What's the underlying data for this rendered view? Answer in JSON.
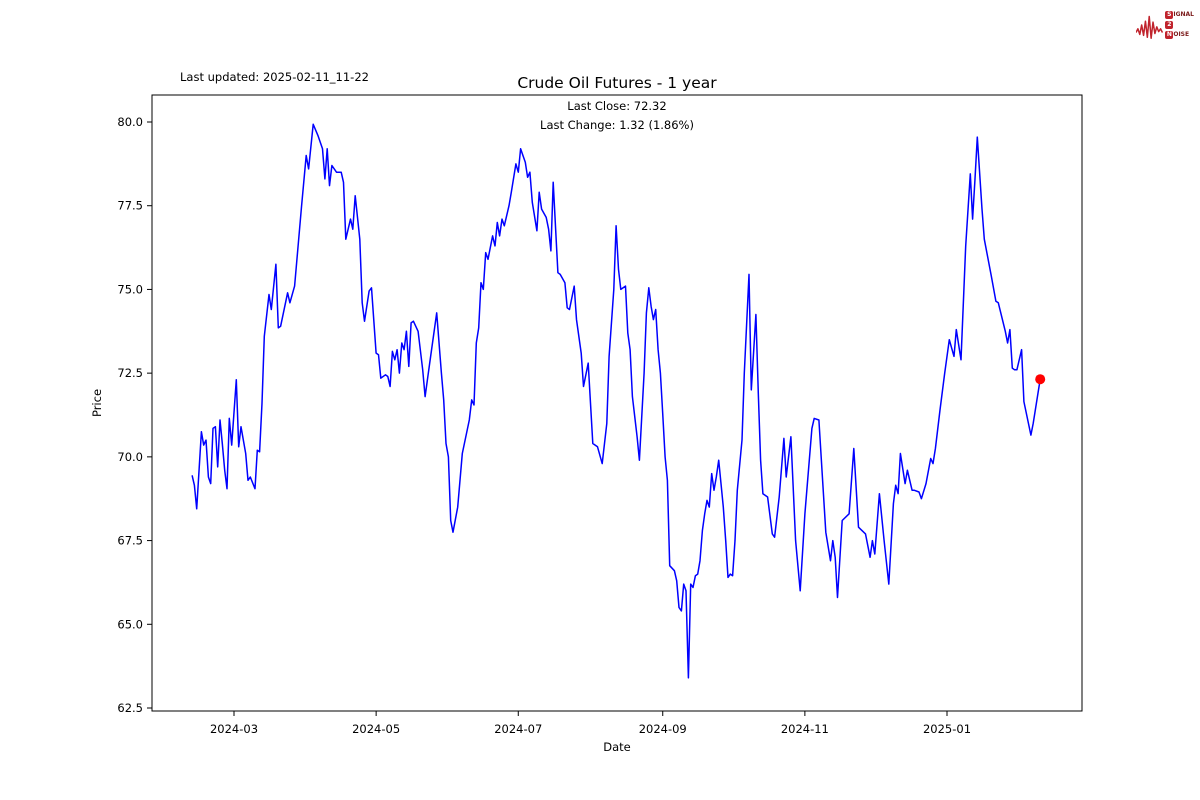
{
  "page": {
    "background": "#ffffff",
    "last_updated": "Last updated: 2025-02-11_11-22"
  },
  "brand": {
    "color": "#c0232c",
    "text_color": "#7b1b1b",
    "line1_badge": "S",
    "line1_rest": "IGNAL",
    "line2_badge": "2",
    "line3_badge": "N",
    "line3_rest": "OISE"
  },
  "chart": {
    "title": "Crude Oil Futures - 1 year",
    "annotation_line1": "Last Close: 72.32",
    "annotation_line2": "Last Change: 1.32 (1.86%)",
    "xlabel": "Date",
    "ylabel": "Price",
    "line_color": "#0000ff",
    "marker_color": "#ff0000",
    "last_close": 72.32,
    "last_change": 1.32,
    "last_change_pct": "1.86%"
  },
  "chart_data": {
    "type": "line",
    "title": "Crude Oil Futures - 1 year",
    "xlabel": "Date",
    "ylabel": "Price",
    "legend": null,
    "grid": false,
    "x_tick_labels": [
      "2024-03",
      "2024-05",
      "2024-07",
      "2024-09",
      "2024-11",
      "2025-01"
    ],
    "y_tick_labels": [
      "62.5",
      "65.0",
      "67.5",
      "70.0",
      "72.5",
      "75.0",
      "77.5",
      "80.0"
    ],
    "y_ticks": [
      62.5,
      65.0,
      67.5,
      70.0,
      72.5,
      75.0,
      77.5,
      80.0
    ],
    "ylim": [
      62.4,
      80.8
    ],
    "xlim": [
      "2024-01-25",
      "2025-02-28"
    ],
    "last_point": {
      "date": "2025-02-10",
      "value": 72.32
    },
    "series": [
      {
        "name": "Crude Oil Futures",
        "points": [
          [
            "2024-02-12",
            69.45
          ],
          [
            "2024-02-13",
            69.15
          ],
          [
            "2024-02-14",
            68.45
          ],
          [
            "2024-02-16",
            70.75
          ],
          [
            "2024-02-17",
            70.35
          ],
          [
            "2024-02-18",
            70.5
          ],
          [
            "2024-02-19",
            69.4
          ],
          [
            "2024-02-20",
            69.2
          ],
          [
            "2024-02-21",
            70.85
          ],
          [
            "2024-02-22",
            70.9
          ],
          [
            "2024-02-23",
            69.7
          ],
          [
            "2024-02-24",
            71.1
          ],
          [
            "2024-02-25",
            70.4
          ],
          [
            "2024-02-26",
            69.6
          ],
          [
            "2024-02-27",
            69.05
          ],
          [
            "2024-02-28",
            71.15
          ],
          [
            "2024-02-29",
            70.35
          ],
          [
            "2024-03-02",
            72.3
          ],
          [
            "2024-03-03",
            70.3
          ],
          [
            "2024-03-04",
            70.9
          ],
          [
            "2024-03-06",
            70.1
          ],
          [
            "2024-03-07",
            69.3
          ],
          [
            "2024-03-08",
            69.4
          ],
          [
            "2024-03-10",
            69.05
          ],
          [
            "2024-03-11",
            70.2
          ],
          [
            "2024-03-12",
            70.15
          ],
          [
            "2024-03-13",
            71.6
          ],
          [
            "2024-03-14",
            73.6
          ],
          [
            "2024-03-16",
            74.85
          ],
          [
            "2024-03-17",
            74.4
          ],
          [
            "2024-03-19",
            75.75
          ],
          [
            "2024-03-20",
            73.85
          ],
          [
            "2024-03-21",
            73.9
          ],
          [
            "2024-03-24",
            74.9
          ],
          [
            "2024-03-25",
            74.6
          ],
          [
            "2024-03-27",
            75.1
          ],
          [
            "2024-03-30",
            77.5
          ],
          [
            "2024-04-01",
            79.0
          ],
          [
            "2024-04-02",
            78.6
          ],
          [
            "2024-04-04",
            79.93
          ],
          [
            "2024-04-06",
            79.6
          ],
          [
            "2024-04-08",
            79.2
          ],
          [
            "2024-04-09",
            78.3
          ],
          [
            "2024-04-10",
            79.2
          ],
          [
            "2024-04-11",
            78.1
          ],
          [
            "2024-04-12",
            78.7
          ],
          [
            "2024-04-14",
            78.5
          ],
          [
            "2024-04-16",
            78.5
          ],
          [
            "2024-04-17",
            78.2
          ],
          [
            "2024-04-18",
            76.5
          ],
          [
            "2024-04-20",
            77.1
          ],
          [
            "2024-04-21",
            76.8
          ],
          [
            "2024-04-22",
            77.8
          ],
          [
            "2024-04-24",
            76.5
          ],
          [
            "2024-04-25",
            74.6
          ],
          [
            "2024-04-26",
            74.05
          ],
          [
            "2024-04-28",
            74.95
          ],
          [
            "2024-04-29",
            75.05
          ],
          [
            "2024-05-01",
            73.1
          ],
          [
            "2024-05-02",
            73.05
          ],
          [
            "2024-05-03",
            72.35
          ],
          [
            "2024-05-05",
            72.45
          ],
          [
            "2024-05-06",
            72.4
          ],
          [
            "2024-05-07",
            72.1
          ],
          [
            "2024-05-08",
            73.15
          ],
          [
            "2024-05-09",
            72.9
          ],
          [
            "2024-05-10",
            73.2
          ],
          [
            "2024-05-11",
            72.5
          ],
          [
            "2024-05-12",
            73.4
          ],
          [
            "2024-05-13",
            73.2
          ],
          [
            "2024-05-14",
            73.75
          ],
          [
            "2024-05-15",
            72.7
          ],
          [
            "2024-05-16",
            74.0
          ],
          [
            "2024-05-17",
            74.05
          ],
          [
            "2024-05-19",
            73.75
          ],
          [
            "2024-05-21",
            72.6
          ],
          [
            "2024-05-22",
            71.8
          ],
          [
            "2024-05-24",
            72.8
          ],
          [
            "2024-05-27",
            74.3
          ],
          [
            "2024-05-29",
            72.5
          ],
          [
            "2024-05-30",
            71.7
          ],
          [
            "2024-05-31",
            70.4
          ],
          [
            "2024-06-01",
            70.0
          ],
          [
            "2024-06-02",
            68.1
          ],
          [
            "2024-06-03",
            67.75
          ],
          [
            "2024-06-05",
            68.5
          ],
          [
            "2024-06-07",
            70.1
          ],
          [
            "2024-06-10",
            71.1
          ],
          [
            "2024-06-11",
            71.7
          ],
          [
            "2024-06-12",
            71.55
          ],
          [
            "2024-06-13",
            73.4
          ],
          [
            "2024-06-14",
            73.85
          ],
          [
            "2024-06-15",
            75.2
          ],
          [
            "2024-06-16",
            75.0
          ],
          [
            "2024-06-17",
            76.1
          ],
          [
            "2024-06-18",
            75.9
          ],
          [
            "2024-06-20",
            76.6
          ],
          [
            "2024-06-21",
            76.3
          ],
          [
            "2024-06-22",
            77.0
          ],
          [
            "2024-06-23",
            76.6
          ],
          [
            "2024-06-24",
            77.1
          ],
          [
            "2024-06-25",
            76.9
          ],
          [
            "2024-06-27",
            77.5
          ],
          [
            "2024-06-28",
            77.9
          ],
          [
            "2024-06-30",
            78.75
          ],
          [
            "2024-07-01",
            78.5
          ],
          [
            "2024-07-02",
            79.2
          ],
          [
            "2024-07-04",
            78.8
          ],
          [
            "2024-07-05",
            78.35
          ],
          [
            "2024-07-06",
            78.5
          ],
          [
            "2024-07-07",
            77.6
          ],
          [
            "2024-07-09",
            76.75
          ],
          [
            "2024-07-10",
            77.9
          ],
          [
            "2024-07-11",
            77.4
          ],
          [
            "2024-07-13",
            77.15
          ],
          [
            "2024-07-14",
            76.8
          ],
          [
            "2024-07-15",
            76.15
          ],
          [
            "2024-07-16",
            78.2
          ],
          [
            "2024-07-18",
            75.5
          ],
          [
            "2024-07-19",
            75.45
          ],
          [
            "2024-07-21",
            75.2
          ],
          [
            "2024-07-22",
            74.45
          ],
          [
            "2024-07-23",
            74.4
          ],
          [
            "2024-07-25",
            75.1
          ],
          [
            "2024-07-26",
            74.1
          ],
          [
            "2024-07-28",
            73.1
          ],
          [
            "2024-07-29",
            72.1
          ],
          [
            "2024-07-31",
            72.8
          ],
          [
            "2024-08-01",
            71.6
          ],
          [
            "2024-08-02",
            70.4
          ],
          [
            "2024-08-04",
            70.3
          ],
          [
            "2024-08-06",
            69.8
          ],
          [
            "2024-08-08",
            71.0
          ],
          [
            "2024-08-09",
            73.0
          ],
          [
            "2024-08-11",
            75.0
          ],
          [
            "2024-08-12",
            76.9
          ],
          [
            "2024-08-13",
            75.6
          ],
          [
            "2024-08-14",
            75.0
          ],
          [
            "2024-08-16",
            75.1
          ],
          [
            "2024-08-17",
            73.7
          ],
          [
            "2024-08-18",
            73.2
          ],
          [
            "2024-08-19",
            71.8
          ],
          [
            "2024-08-21",
            70.6
          ],
          [
            "2024-08-22",
            69.9
          ],
          [
            "2024-08-24",
            72.5
          ],
          [
            "2024-08-25",
            74.3
          ],
          [
            "2024-08-26",
            75.05
          ],
          [
            "2024-08-27",
            74.5
          ],
          [
            "2024-08-28",
            74.1
          ],
          [
            "2024-08-29",
            74.4
          ],
          [
            "2024-08-30",
            73.2
          ],
          [
            "2024-08-31",
            72.5
          ],
          [
            "2024-09-01",
            71.3
          ],
          [
            "2024-09-02",
            70.0
          ],
          [
            "2024-09-03",
            69.3
          ],
          [
            "2024-09-04",
            66.75
          ],
          [
            "2024-09-06",
            66.6
          ],
          [
            "2024-09-07",
            66.3
          ],
          [
            "2024-09-08",
            65.5
          ],
          [
            "2024-09-09",
            65.4
          ],
          [
            "2024-09-10",
            66.2
          ],
          [
            "2024-09-11",
            66.0
          ],
          [
            "2024-09-12",
            63.4
          ],
          [
            "2024-09-13",
            66.2
          ],
          [
            "2024-09-14",
            66.1
          ],
          [
            "2024-09-15",
            66.45
          ],
          [
            "2024-09-16",
            66.5
          ],
          [
            "2024-09-17",
            66.9
          ],
          [
            "2024-09-18",
            67.8
          ],
          [
            "2024-09-19",
            68.3
          ],
          [
            "2024-09-20",
            68.7
          ],
          [
            "2024-09-21",
            68.5
          ],
          [
            "2024-09-22",
            69.5
          ],
          [
            "2024-09-23",
            69.0
          ],
          [
            "2024-09-24",
            69.4
          ],
          [
            "2024-09-25",
            69.9
          ],
          [
            "2024-09-26",
            69.2
          ],
          [
            "2024-09-27",
            68.5
          ],
          [
            "2024-09-28",
            67.5
          ],
          [
            "2024-09-29",
            66.4
          ],
          [
            "2024-09-30",
            66.5
          ],
          [
            "2024-10-01",
            66.45
          ],
          [
            "2024-10-02",
            67.5
          ],
          [
            "2024-10-03",
            69.0
          ],
          [
            "2024-10-05",
            70.5
          ],
          [
            "2024-10-06",
            72.5
          ],
          [
            "2024-10-08",
            75.45
          ],
          [
            "2024-10-09",
            72.0
          ],
          [
            "2024-10-11",
            74.25
          ],
          [
            "2024-10-12",
            71.9
          ],
          [
            "2024-10-13",
            69.9
          ],
          [
            "2024-10-14",
            68.9
          ],
          [
            "2024-10-16",
            68.8
          ],
          [
            "2024-10-18",
            67.7
          ],
          [
            "2024-10-19",
            67.6
          ],
          [
            "2024-10-21",
            68.8
          ],
          [
            "2024-10-23",
            70.55
          ],
          [
            "2024-10-24",
            69.4
          ],
          [
            "2024-10-26",
            70.6
          ],
          [
            "2024-10-28",
            67.5
          ],
          [
            "2024-10-30",
            66.0
          ],
          [
            "2024-11-01",
            68.3
          ],
          [
            "2024-11-04",
            70.85
          ],
          [
            "2024-11-05",
            71.15
          ],
          [
            "2024-11-07",
            71.1
          ],
          [
            "2024-11-10",
            67.75
          ],
          [
            "2024-11-12",
            66.9
          ],
          [
            "2024-11-13",
            67.5
          ],
          [
            "2024-11-14",
            67.0
          ],
          [
            "2024-11-15",
            65.8
          ],
          [
            "2024-11-17",
            68.1
          ],
          [
            "2024-11-20",
            68.3
          ],
          [
            "2024-11-22",
            70.25
          ],
          [
            "2024-11-24",
            67.9
          ],
          [
            "2024-11-27",
            67.7
          ],
          [
            "2024-11-29",
            67.0
          ],
          [
            "2024-11-30",
            67.5
          ],
          [
            "2024-12-01",
            67.1
          ],
          [
            "2024-12-03",
            68.9
          ],
          [
            "2024-12-05",
            67.5
          ],
          [
            "2024-12-07",
            66.2
          ],
          [
            "2024-12-09",
            68.6
          ],
          [
            "2024-12-10",
            69.15
          ],
          [
            "2024-12-11",
            68.9
          ],
          [
            "2024-12-12",
            70.1
          ],
          [
            "2024-12-14",
            69.2
          ],
          [
            "2024-12-15",
            69.6
          ],
          [
            "2024-12-17",
            69.0
          ],
          [
            "2024-12-18",
            69.0
          ],
          [
            "2024-12-20",
            68.95
          ],
          [
            "2024-12-21",
            68.75
          ],
          [
            "2024-12-23",
            69.2
          ],
          [
            "2024-12-25",
            69.95
          ],
          [
            "2024-12-26",
            69.8
          ],
          [
            "2024-12-27",
            70.25
          ],
          [
            "2024-12-29",
            71.4
          ],
          [
            "2024-12-31",
            72.5
          ],
          [
            "2025-01-02",
            73.5
          ],
          [
            "2025-01-04",
            73.0
          ],
          [
            "2025-01-05",
            73.8
          ],
          [
            "2025-01-07",
            72.9
          ],
          [
            "2025-01-09",
            76.3
          ],
          [
            "2025-01-11",
            78.45
          ],
          [
            "2025-01-12",
            77.1
          ],
          [
            "2025-01-13",
            78.3
          ],
          [
            "2025-01-14",
            79.55
          ],
          [
            "2025-01-16",
            77.4
          ],
          [
            "2025-01-17",
            76.5
          ],
          [
            "2025-01-20",
            75.4
          ],
          [
            "2025-01-22",
            74.65
          ],
          [
            "2025-01-23",
            74.6
          ],
          [
            "2025-01-26",
            73.75
          ],
          [
            "2025-01-27",
            73.4
          ],
          [
            "2025-01-28",
            73.8
          ],
          [
            "2025-01-29",
            72.65
          ],
          [
            "2025-01-30",
            72.6
          ],
          [
            "2025-01-31",
            72.6
          ],
          [
            "2025-02-02",
            73.2
          ],
          [
            "2025-02-03",
            71.65
          ],
          [
            "2025-02-06",
            70.65
          ],
          [
            "2025-02-07",
            71.0
          ],
          [
            "2025-02-10",
            72.32
          ]
        ]
      }
    ]
  }
}
